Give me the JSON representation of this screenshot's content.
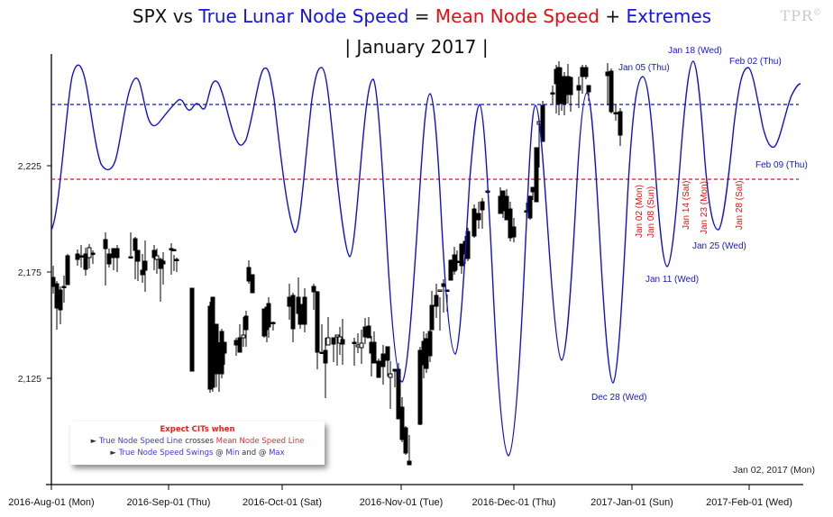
{
  "title": {
    "line1_parts": [
      {
        "text": "SPX vs ",
        "color": "#111111"
      },
      {
        "text": "True Lunar Node Speed",
        "color": "#1515e0"
      },
      {
        "text": " = ",
        "color": "#111111"
      },
      {
        "text": "Mean Node Speed",
        "color": "#e01010"
      },
      {
        "text": " + ",
        "color": "#111111"
      },
      {
        "text": "Extremes",
        "color": "#1515e0"
      }
    ],
    "line2": "| January 2017 |",
    "watermark": "TPR",
    "watermark_mark": "©"
  },
  "legend": {
    "header": "Expect CITs when",
    "line1": {
      "bullet": "►",
      "a": "True Node Speed Line",
      "b": " crosses ",
      "c": "Mean Node Speed Line"
    },
    "line2": {
      "bullet": "►",
      "a": "True Node Speed Swings",
      "b": " @ ",
      "c": "Min",
      "d": " and @ ",
      "e": "Max"
    }
  },
  "date_stamp": "Jan 02, 2017 (Mon)",
  "colors": {
    "true_node": "#1010d0",
    "mean_node": "#e01010",
    "candle_up_fill": "#ffffff",
    "candle_down_fill": "#000000",
    "axis": "#000000"
  },
  "chart_data": {
    "type": "candlestick+line",
    "title": "SPX vs True Lunar Node Speed = Mean Node Speed + Extremes | January 2017 |",
    "xlabel": "",
    "ylabel": "",
    "y_ticks": [
      "2,125",
      "2,175",
      "2,225"
    ],
    "y_tick_values": [
      2125,
      2175,
      2225
    ],
    "ylim": [
      2090,
      2295
    ],
    "x_ticks": [
      "2016-Aug-01 (Mon)",
      "2016-Sep-01 (Thu)",
      "2016-Oct-01 (Sat)",
      "2016-Nov-01 (Tue)",
      "2016-Dec-01 (Thu)",
      "2017-Jan-01 (Sun)",
      "2017-Feb-01 (Wed)"
    ],
    "grid": false,
    "series": [
      {
        "name": "SPX (candlesticks)",
        "type": "candlestick",
        "approx_range": [
          2084,
          2277
        ]
      },
      {
        "name": "True Lunar Node Speed",
        "type": "line",
        "color": "#1010d0"
      },
      {
        "name": "Mean Node Speed",
        "type": "hline",
        "color": "#e01010",
        "style": "dashed"
      },
      {
        "name": "True Node Speed reference",
        "type": "hline",
        "color": "#1010d0",
        "style": "dashed"
      }
    ],
    "annotations_max": [
      {
        "label": "Jan 05 (Thu)"
      },
      {
        "label": "Jan 18 (Wed)"
      },
      {
        "label": "Feb 02 (Thu)"
      }
    ],
    "annotations_min": [
      {
        "label": "Dec 28 (Wed)"
      },
      {
        "label": "Jan 11 (Wed)"
      },
      {
        "label": "Jan 25 (Wed)"
      },
      {
        "label": "Feb 09 (Thu)"
      }
    ],
    "annotations_cross": [
      {
        "label": "Jan 02 (Mon)"
      },
      {
        "label": "Jan 08 (Sun)"
      },
      {
        "label": "Jan 14 (Sat)"
      },
      {
        "label": "Jan 23 (Mon)"
      },
      {
        "label": "Jan 28 (Sat)"
      }
    ],
    "legend_position": "bottom-left"
  }
}
